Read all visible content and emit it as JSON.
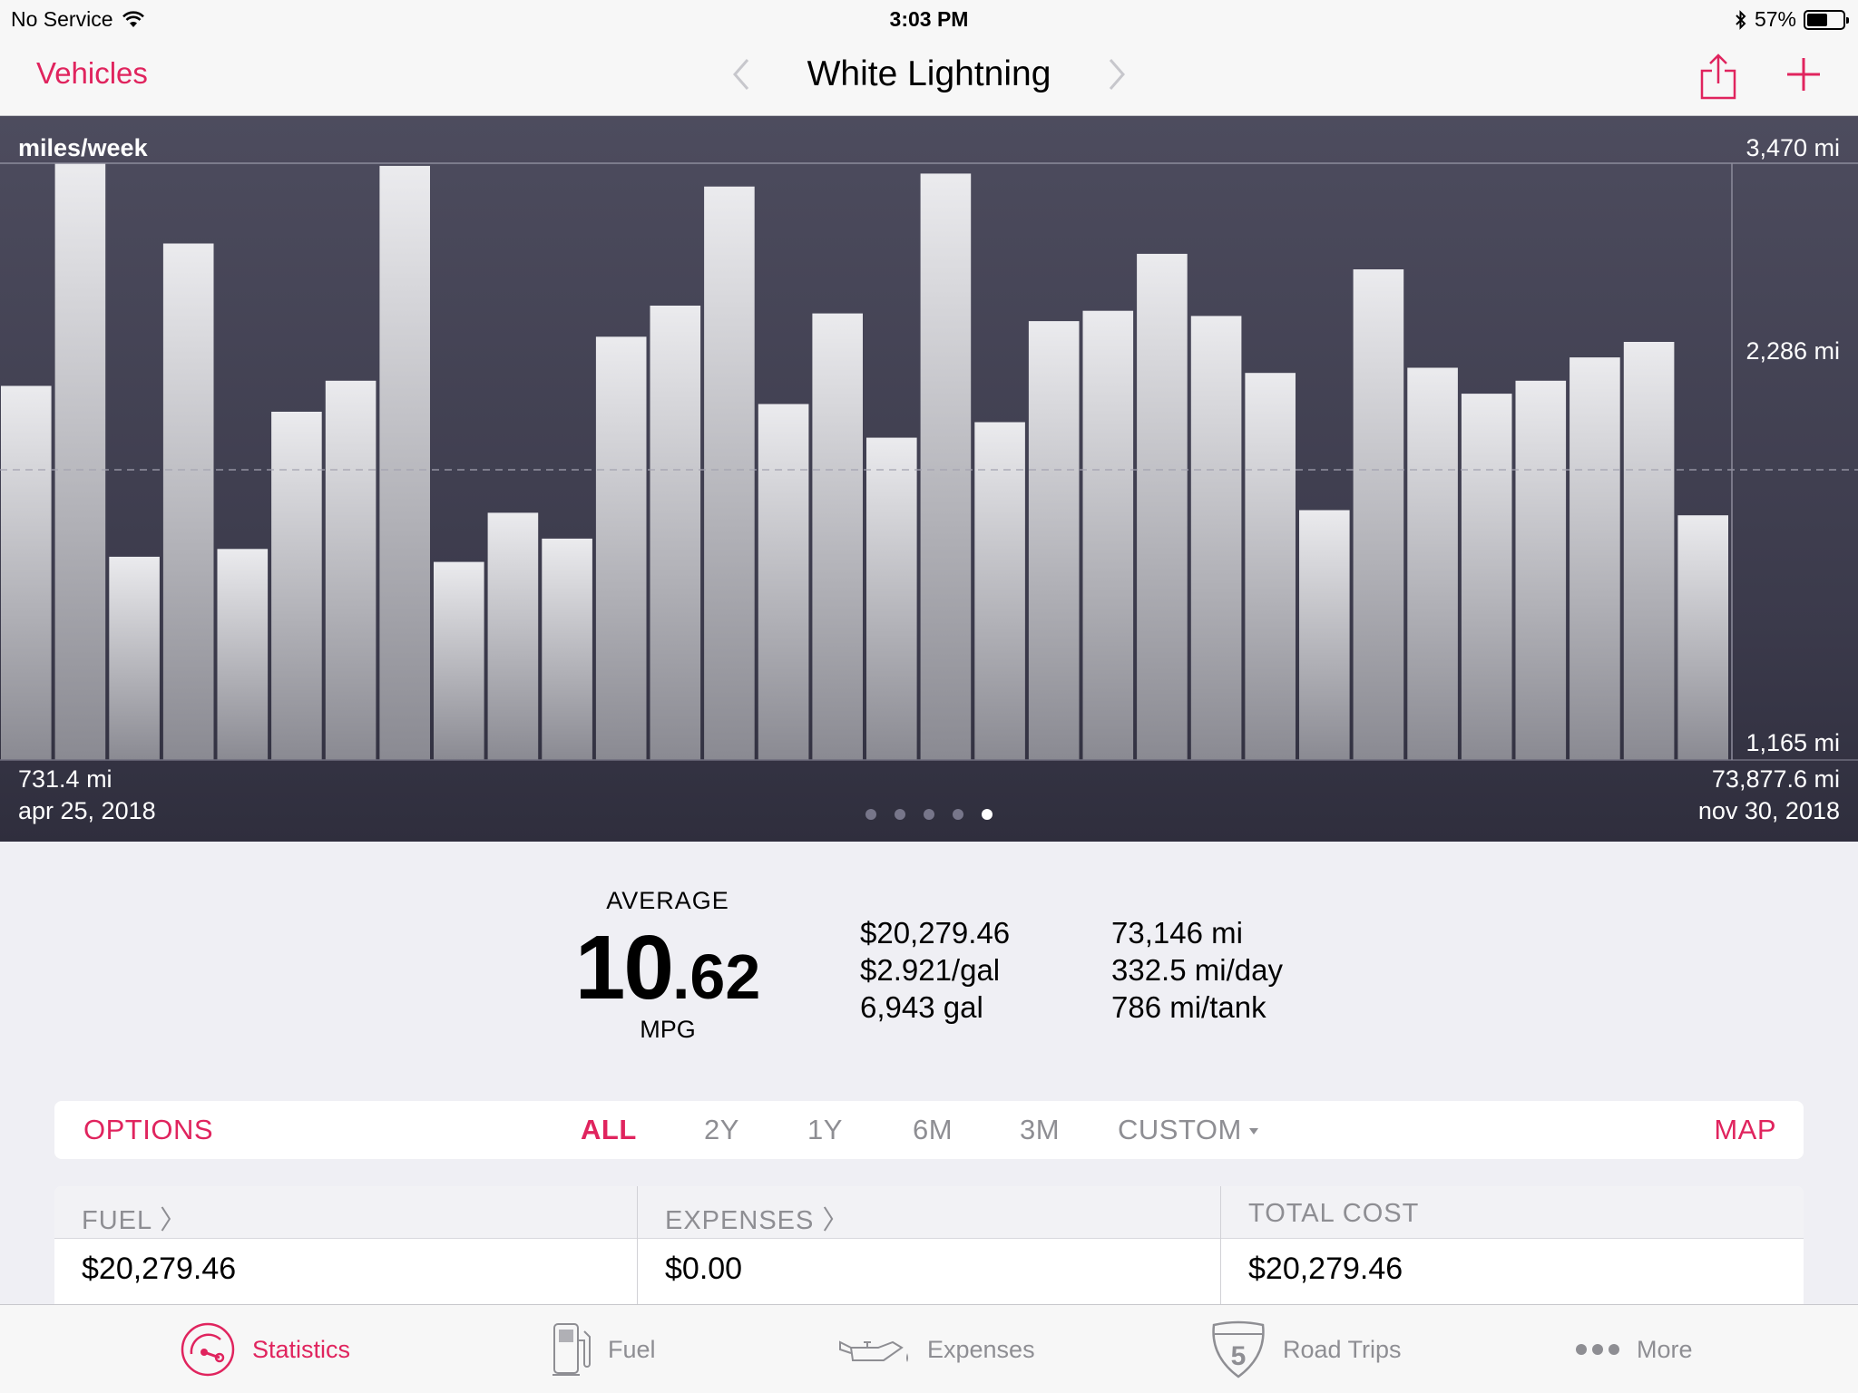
{
  "status_bar": {
    "carrier": "No Service",
    "time": "3:03 PM",
    "battery": "57%",
    "battery_level": 0.57
  },
  "nav": {
    "back_label": "Vehicles",
    "title": "White Lightning"
  },
  "chart": {
    "unit_label": "miles/week",
    "max_label": "3,470 mi",
    "mid_label": "2,286 mi",
    "min_label": "1,165 mi",
    "start_value": "731.4 mi",
    "start_date": "apr 25, 2018",
    "end_value": "73,877.6 mi",
    "end_date": "nov 30, 2018",
    "page_count": 5,
    "active_page": 4
  },
  "chart_data": {
    "type": "bar",
    "title": "miles/week",
    "ylim": [
      1165,
      3470
    ],
    "reference_line": 2286,
    "values": [
      2610,
      3470,
      1950,
      3160,
      1980,
      2510,
      2630,
      3460,
      1930,
      2120,
      2020,
      2800,
      2920,
      3380,
      2540,
      2890,
      2410,
      3430,
      2470,
      2860,
      2900,
      3120,
      2880,
      2660,
      2130,
      3060,
      2680,
      2580,
      2630,
      2720,
      2780,
      2110
    ]
  },
  "summary": {
    "average_label": "AVERAGE",
    "average_int": "10",
    "average_dec": ".62",
    "average_unit": "MPG",
    "cost_stats": [
      "$20,279.46",
      "$2.921/gal",
      "6,943 gal"
    ],
    "distance_stats": [
      "73,146 mi",
      "332.5 mi/day",
      "786 mi/tank"
    ]
  },
  "options": {
    "options_label": "OPTIONS",
    "ranges": [
      "ALL",
      "2Y",
      "1Y",
      "6M",
      "3M"
    ],
    "custom_label": "CUSTOM",
    "map_label": "MAP"
  },
  "totals": {
    "fuel_label": "FUEL 〉",
    "fuel_value": "$20,279.46",
    "expenses_label": "EXPENSES 〉",
    "expenses_value": "$0.00",
    "total_label": "TOTAL COST",
    "total_value": "$20,279.46"
  },
  "tabs": {
    "statistics": "Statistics",
    "fuel": "Fuel",
    "expenses": "Expenses",
    "road_trips": "Road Trips",
    "road_trips_badge": "5",
    "more": "More"
  },
  "colors": {
    "accent": "#e0245e",
    "inactive": "#8e8e93"
  }
}
